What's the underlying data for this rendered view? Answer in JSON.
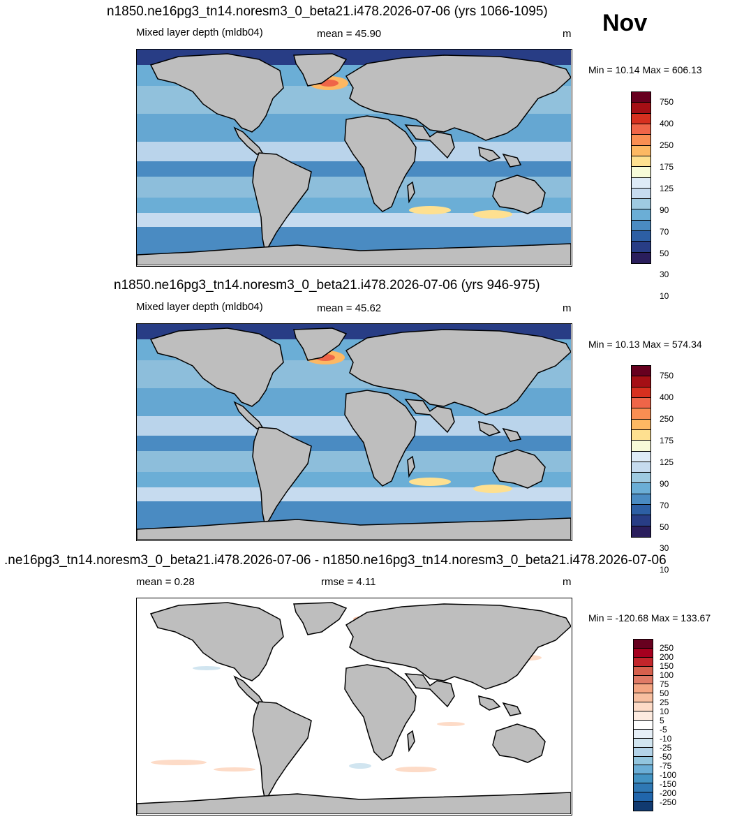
{
  "month": "Nov",
  "panels": [
    {
      "title": "n1850.ne16pg3_tn14.noresm3_0_beta21.i478.2026-07-06 (yrs 1066-1095)",
      "left": "Mixed layer depth (mldb04)",
      "center": "mean =  45.90",
      "units": "m",
      "minmax": "Min =  10.14 Max = 606.13",
      "type": "field"
    },
    {
      "title": "n1850.ne16pg3_tn14.noresm3_0_beta21.i478.2026-07-06 (yrs 946-975)",
      "left": "Mixed layer depth (mldb04)",
      "center": "mean =  45.62",
      "units": "m",
      "minmax": "Min =  10.13 Max = 574.34",
      "type": "field"
    },
    {
      "title": ".ne16pg3_tn14.noresm3_0_beta21.i478.2026-07-06 - n1850.ne16pg3_tn14.noresm3_0_beta21.i478.2026-07-06",
      "left": "mean =   0.28",
      "center": "rmse =   4.11",
      "units": "m",
      "minmax": "Min = -120.68 Max = 133.67",
      "type": "diff"
    }
  ],
  "colorbars": {
    "field": {
      "labels": [
        "750",
        "400",
        "250",
        "175",
        "125",
        "90",
        "70",
        "50",
        "30",
        "10"
      ],
      "colors": [
        "#67001f",
        "#a50f15",
        "#d7301f",
        "#ef6548",
        "#f98e52",
        "#fdb863",
        "#fee090",
        "#f7fbd8",
        "#deebf7",
        "#c6dbef",
        "#9ecae1",
        "#6baed6",
        "#4a8bc2",
        "#2d5fa4",
        "#283d85",
        "#2a1e5c"
      ]
    },
    "diff": {
      "labels": [
        "250",
        "200",
        "150",
        "100",
        "75",
        "50",
        "25",
        "10",
        "5",
        "-5",
        "-10",
        "-25",
        "-50",
        "-75",
        "-100",
        "-150",
        "-200",
        "-250"
      ],
      "colors": [
        "#67001f",
        "#a5001f",
        "#c2252b",
        "#d6604d",
        "#e07a66",
        "#f4a582",
        "#f7bfa0",
        "#fddbc7",
        "#fdebe0",
        "#ffffff",
        "#e6eff7",
        "#d1e5f0",
        "#b3d3e8",
        "#92c5de",
        "#6baed6",
        "#4393c3",
        "#2f78b4",
        "#2166ac",
        "#113a70"
      ]
    }
  }
}
